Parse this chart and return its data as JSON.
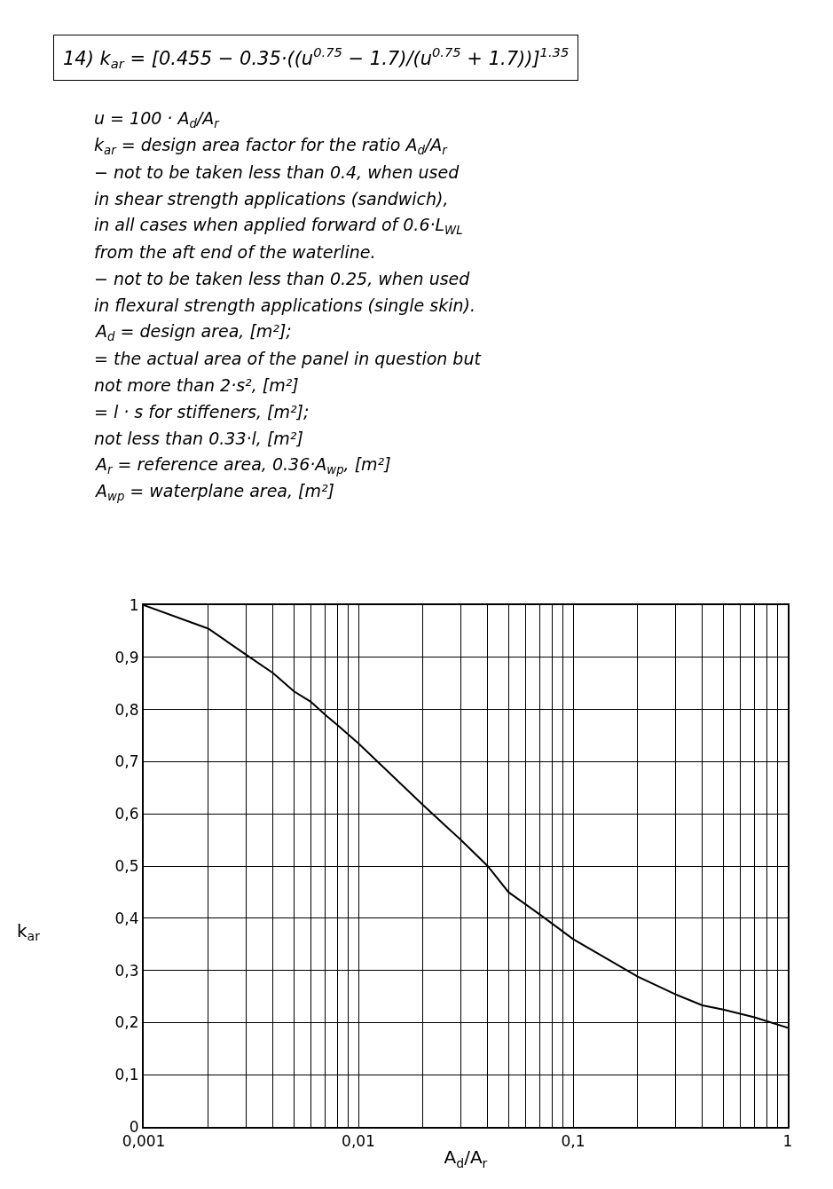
{
  "chart_data": {
    "type": "line",
    "title": "14) k$_{ar}$ = [0.455 − 0.35·((u$^{0.75}$ − 1.7)/(u$^{0.75}$ + 1.7))]$^{1.35}$",
    "annotations": [
      "u = 100 · A$_{d}$/A$_{r}$",
      "k$_{ar}$ = design area factor for the ratio A$_{d}$/A$_{r}$",
      "− not to be taken less than 0.4, when used",
      "in shear strength applications (sandwich),",
      "in all cases when applied forward of 0.6·L$_{WL}$",
      "from the aft end of the waterline.",
      "− not to be taken less than 0.25, when used",
      "in flexural strength applications (single skin).",
      "A$_{d}$ = design area, [m²];",
      "= the actual area of the panel in question but",
      "not more than 2·s², [m²]",
      "= l · s for stiffeners, [m²];",
      "not less than 0.33·l, [m²]",
      "A$_{r}$ = reference area, 0.36·A$_{wp}$, [m²]",
      "A$_{wp}$ = waterplane area, [m²]"
    ],
    "xlabel": "A$_{d}$/A$_{r}$",
    "ylabel": "k$_{ar}$",
    "x": [
      0.001,
      0.002,
      0.003,
      0.004,
      0.005,
      0.006,
      0.007,
      0.008,
      0.01,
      0.02,
      0.03,
      0.04,
      0.05,
      0.07,
      0.1,
      0.2,
      0.3,
      0.4,
      0.5,
      0.7,
      1
    ],
    "series": [
      {
        "color": "#000000",
        "values": [
          1.0,
          0.955,
          0.905,
          0.87,
          0.835,
          0.815,
          0.79,
          0.77,
          0.735,
          0.617,
          0.55,
          0.5,
          0.45,
          0.407,
          0.36,
          0.288,
          0.254,
          0.233,
          0.225,
          0.21,
          0.19
        ]
      }
    ],
    "log": "x",
    "xlim": [
      0.001,
      1
    ],
    "ylim": [
      0,
      1
    ],
    "xticks": [
      {
        "value": 0.001,
        "label": "0,001"
      },
      {
        "value": 0.002,
        "label": null
      },
      {
        "value": 0.003,
        "label": null
      },
      {
        "value": 0.004,
        "label": null
      },
      {
        "value": 0.005,
        "label": null
      },
      {
        "value": 0.006,
        "label": null
      },
      {
        "value": 0.007,
        "label": null
      },
      {
        "value": 0.008,
        "label": null
      },
      {
        "value": 0.009,
        "label": null
      },
      {
        "value": 0.01,
        "label": "0,01"
      },
      {
        "value": 0.02,
        "label": null
      },
      {
        "value": 0.03,
        "label": null
      },
      {
        "value": 0.04,
        "label": null
      },
      {
        "value": 0.05,
        "label": null
      },
      {
        "value": 0.06,
        "label": null
      },
      {
        "value": 0.07,
        "label": null
      },
      {
        "value": 0.08,
        "label": null
      },
      {
        "value": 0.09,
        "label": null
      },
      {
        "value": 0.1,
        "label": "0,1"
      },
      {
        "value": 0.2,
        "label": null
      },
      {
        "value": 0.3,
        "label": null
      },
      {
        "value": 0.4,
        "label": null
      },
      {
        "value": 0.5,
        "label": null
      },
      {
        "value": 0.6,
        "label": null
      },
      {
        "value": 0.7,
        "label": null
      },
      {
        "value": 0.8,
        "label": null
      },
      {
        "value": 0.9,
        "label": null
      },
      {
        "value": 1,
        "label": "1"
      }
    ],
    "yticks": [
      0,
      {
        "value": 0.1,
        "label": "0,1"
      },
      {
        "value": 0.2,
        "label": "0,2"
      },
      {
        "value": 0.3,
        "label": "0,3"
      },
      {
        "value": 0.4,
        "label": "0,4"
      },
      {
        "value": 0.5,
        "label": "0,5"
      },
      {
        "value": 0.6,
        "label": "0,6"
      },
      {
        "value": 0.7,
        "label": "0,7"
      },
      {
        "value": 0.8,
        "label": "0,8"
      },
      {
        "value": 0.9,
        "label": "0,9"
      },
      1
    ],
    "grid": true,
    "marker": "none",
    "line_style": "solid"
  }
}
